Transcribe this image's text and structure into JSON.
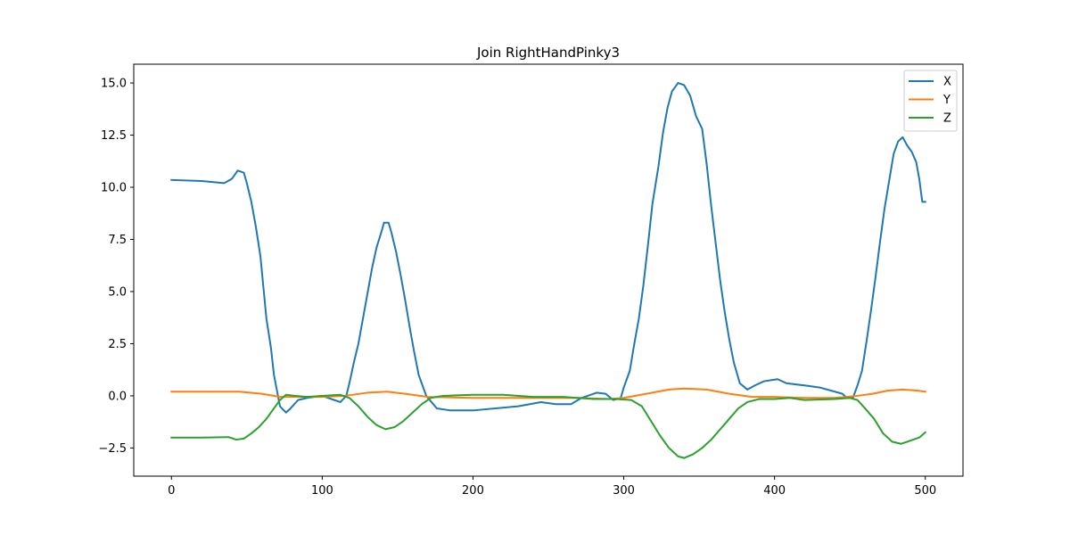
{
  "chart_data": {
    "type": "line",
    "title": "Join RightHandPinky3",
    "xlabel": "",
    "ylabel": "",
    "xlim": [
      -25,
      525
    ],
    "ylim": [
      -3.85,
      15.9
    ],
    "xticks": [
      0,
      100,
      200,
      300,
      400,
      500
    ],
    "xtick_labels": [
      "0",
      "100",
      "200",
      "300",
      "400",
      "500"
    ],
    "yticks": [
      -2.5,
      0.0,
      2.5,
      5.0,
      7.5,
      10.0,
      12.5,
      15.0
    ],
    "ytick_labels": [
      "−2.5",
      "0.0",
      "2.5",
      "5.0",
      "7.5",
      "10.0",
      "12.5",
      "15.0"
    ],
    "grid": false,
    "legend_position": "top-right",
    "series": [
      {
        "name": "X",
        "color": "#1f77b4",
        "points": [
          [
            0,
            10.35
          ],
          [
            20,
            10.3
          ],
          [
            35,
            10.2
          ],
          [
            40,
            10.4
          ],
          [
            44,
            10.8
          ],
          [
            48,
            10.7
          ],
          [
            50,
            10.2
          ],
          [
            53,
            9.3
          ],
          [
            56,
            8.1
          ],
          [
            59,
            6.7
          ],
          [
            61,
            5.2
          ],
          [
            63,
            3.7
          ],
          [
            66,
            2.3
          ],
          [
            68,
            1.0
          ],
          [
            72,
            -0.5
          ],
          [
            76,
            -0.8
          ],
          [
            79,
            -0.6
          ],
          [
            84,
            -0.2
          ],
          [
            90,
            -0.1
          ],
          [
            100,
            0.0
          ],
          [
            108,
            -0.2
          ],
          [
            112,
            -0.3
          ],
          [
            116,
            0.0
          ],
          [
            118,
            0.6
          ],
          [
            121,
            1.6
          ],
          [
            124,
            2.5
          ],
          [
            127,
            3.7
          ],
          [
            130,
            4.9
          ],
          [
            133,
            6.1
          ],
          [
            136,
            7.1
          ],
          [
            139,
            7.8
          ],
          [
            141,
            8.3
          ],
          [
            144,
            8.3
          ],
          [
            146,
            7.8
          ],
          [
            149,
            6.9
          ],
          [
            152,
            5.8
          ],
          [
            155,
            4.6
          ],
          [
            158,
            3.3
          ],
          [
            161,
            2.1
          ],
          [
            164,
            1.0
          ],
          [
            169,
            0.0
          ],
          [
            176,
            -0.6
          ],
          [
            185,
            -0.7
          ],
          [
            200,
            -0.7
          ],
          [
            230,
            -0.5
          ],
          [
            245,
            -0.3
          ],
          [
            255,
            -0.4
          ],
          [
            265,
            -0.4
          ],
          [
            272,
            -0.1
          ],
          [
            282,
            0.15
          ],
          [
            288,
            0.1
          ],
          [
            293,
            -0.2
          ],
          [
            298,
            -0.1
          ],
          [
            300,
            0.4
          ],
          [
            304,
            1.2
          ],
          [
            307,
            2.5
          ],
          [
            310,
            3.7
          ],
          [
            313,
            5.3
          ],
          [
            316,
            7.2
          ],
          [
            319,
            9.2
          ],
          [
            323,
            11.0
          ],
          [
            326,
            12.6
          ],
          [
            329,
            13.8
          ],
          [
            332,
            14.6
          ],
          [
            336,
            15.0
          ],
          [
            340,
            14.9
          ],
          [
            344,
            14.4
          ],
          [
            348,
            13.4
          ],
          [
            352,
            12.8
          ],
          [
            355,
            11.1
          ],
          [
            358,
            9.1
          ],
          [
            361,
            7.3
          ],
          [
            364,
            5.5
          ],
          [
            367,
            4.0
          ],
          [
            370,
            2.7
          ],
          [
            373,
            1.6
          ],
          [
            377,
            0.6
          ],
          [
            382,
            0.3
          ],
          [
            387,
            0.5
          ],
          [
            393,
            0.7
          ],
          [
            402,
            0.8
          ],
          [
            408,
            0.6
          ],
          [
            420,
            0.5
          ],
          [
            430,
            0.4
          ],
          [
            440,
            0.2
          ],
          [
            445,
            0.1
          ],
          [
            448,
            -0.1
          ],
          [
            452,
            -0.1
          ],
          [
            455,
            0.5
          ],
          [
            458,
            1.2
          ],
          [
            461,
            2.6
          ],
          [
            464,
            4.1
          ],
          [
            467,
            5.7
          ],
          [
            470,
            7.4
          ],
          [
            473,
            9.0
          ],
          [
            476,
            10.3
          ],
          [
            479,
            11.6
          ],
          [
            482,
            12.2
          ],
          [
            485,
            12.4
          ],
          [
            488,
            12.0
          ],
          [
            491,
            11.7
          ],
          [
            494,
            11.2
          ],
          [
            496,
            10.4
          ],
          [
            498,
            9.3
          ],
          [
            500,
            9.3
          ]
        ]
      },
      {
        "name": "Y",
        "color": "#ff7f0e",
        "points": [
          [
            0,
            0.2
          ],
          [
            20,
            0.2
          ],
          [
            45,
            0.2
          ],
          [
            60,
            0.1
          ],
          [
            72,
            -0.05
          ],
          [
            85,
            -0.05
          ],
          [
            100,
            -0.05
          ],
          [
            115,
            0.0
          ],
          [
            130,
            0.15
          ],
          [
            143,
            0.2
          ],
          [
            155,
            0.1
          ],
          [
            170,
            -0.05
          ],
          [
            200,
            -0.1
          ],
          [
            250,
            -0.1
          ],
          [
            270,
            -0.1
          ],
          [
            290,
            -0.15
          ],
          [
            300,
            -0.1
          ],
          [
            315,
            0.1
          ],
          [
            330,
            0.3
          ],
          [
            340,
            0.35
          ],
          [
            355,
            0.3
          ],
          [
            370,
            0.1
          ],
          [
            385,
            -0.05
          ],
          [
            400,
            -0.05
          ],
          [
            420,
            -0.1
          ],
          [
            440,
            -0.1
          ],
          [
            455,
            0.0
          ],
          [
            465,
            0.1
          ],
          [
            475,
            0.25
          ],
          [
            485,
            0.3
          ],
          [
            495,
            0.25
          ],
          [
            500,
            0.2
          ]
        ]
      },
      {
        "name": "Z",
        "color": "#2ca02c",
        "points": [
          [
            0,
            -2.0
          ],
          [
            20,
            -2.0
          ],
          [
            38,
            -1.98
          ],
          [
            43,
            -2.1
          ],
          [
            48,
            -2.05
          ],
          [
            53,
            -1.8
          ],
          [
            58,
            -1.5
          ],
          [
            63,
            -1.1
          ],
          [
            68,
            -0.6
          ],
          [
            72,
            -0.2
          ],
          [
            76,
            0.05
          ],
          [
            82,
            0.0
          ],
          [
            90,
            -0.05
          ],
          [
            100,
            0.0
          ],
          [
            112,
            0.05
          ],
          [
            118,
            -0.1
          ],
          [
            124,
            -0.5
          ],
          [
            130,
            -1.0
          ],
          [
            136,
            -1.4
          ],
          [
            142,
            -1.6
          ],
          [
            148,
            -1.5
          ],
          [
            154,
            -1.2
          ],
          [
            160,
            -0.8
          ],
          [
            166,
            -0.4
          ],
          [
            172,
            -0.1
          ],
          [
            180,
            0.0
          ],
          [
            200,
            0.05
          ],
          [
            220,
            0.05
          ],
          [
            240,
            -0.05
          ],
          [
            260,
            -0.05
          ],
          [
            280,
            -0.15
          ],
          [
            295,
            -0.15
          ],
          [
            305,
            -0.2
          ],
          [
            312,
            -0.5
          ],
          [
            318,
            -1.2
          ],
          [
            324,
            -1.9
          ],
          [
            330,
            -2.5
          ],
          [
            336,
            -2.9
          ],
          [
            340,
            -2.98
          ],
          [
            346,
            -2.8
          ],
          [
            352,
            -2.5
          ],
          [
            358,
            -2.1
          ],
          [
            364,
            -1.6
          ],
          [
            370,
            -1.1
          ],
          [
            376,
            -0.6
          ],
          [
            382,
            -0.3
          ],
          [
            390,
            -0.15
          ],
          [
            400,
            -0.15
          ],
          [
            410,
            -0.1
          ],
          [
            420,
            -0.2
          ],
          [
            440,
            -0.15
          ],
          [
            450,
            -0.1
          ],
          [
            455,
            -0.2
          ],
          [
            460,
            -0.6
          ],
          [
            466,
            -1.1
          ],
          [
            472,
            -1.8
          ],
          [
            478,
            -2.2
          ],
          [
            484,
            -2.3
          ],
          [
            490,
            -2.15
          ],
          [
            496,
            -2.0
          ],
          [
            500,
            -1.75
          ]
        ]
      }
    ]
  }
}
